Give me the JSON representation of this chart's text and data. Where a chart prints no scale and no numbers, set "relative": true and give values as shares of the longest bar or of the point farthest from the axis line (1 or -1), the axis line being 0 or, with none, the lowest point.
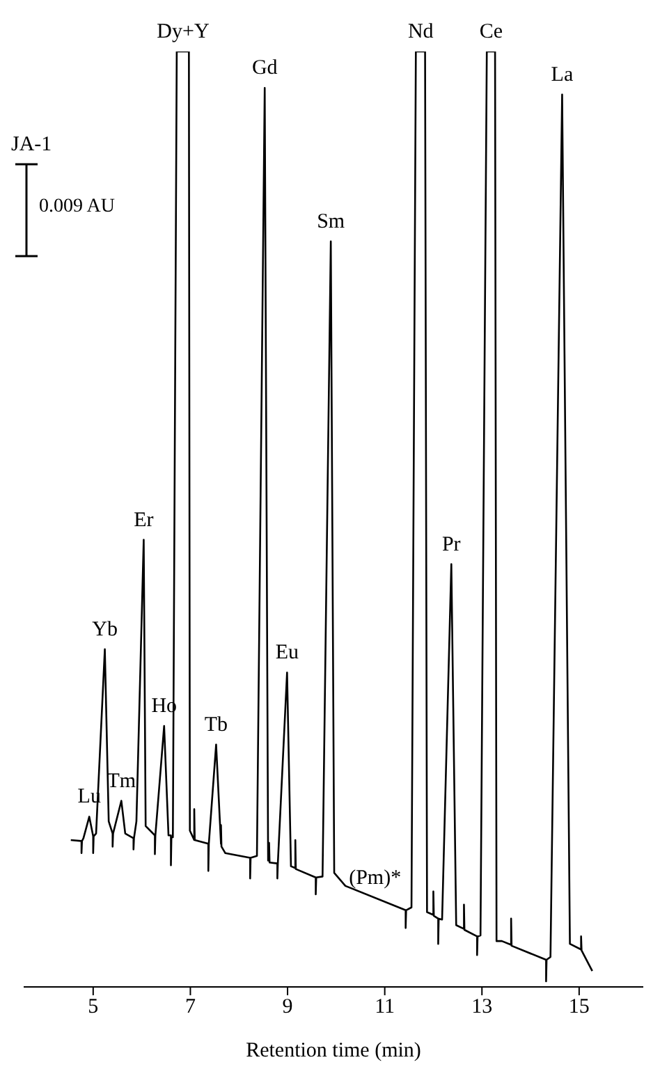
{
  "chart_data": {
    "type": "line",
    "relative": true,
    "xlabel": "Retention time (min)",
    "xlim": [
      3.57,
      16.32
    ],
    "xticks": [
      5,
      7,
      9,
      11,
      13,
      15
    ],
    "marker": "none",
    "line_style": "solid",
    "series": [
      {
        "color": "#000000",
        "x": [
          4.54,
          4.76,
          4.76,
          4.77,
          4.8,
          4.92,
          5.0,
          5.0,
          5.01,
          5.06,
          5.24,
          5.32,
          5.4,
          5.4,
          5.41,
          5.58,
          5.66,
          5.83,
          5.83,
          5.84,
          5.89,
          6.04,
          6.08,
          6.27,
          6.27,
          6.28,
          6.46,
          6.55,
          6.6,
          6.6,
          6.61,
          6.64,
          6.72,
          6.97,
          6.99,
          7.08,
          7.08,
          7.09,
          7.37,
          7.37,
          7.38,
          7.53,
          7.63,
          7.63,
          7.64,
          7.72,
          8.23,
          8.23,
          8.24,
          8.37,
          8.53,
          8.6,
          8.62,
          8.62,
          8.63,
          8.79,
          8.79,
          8.8,
          8.99,
          9.07,
          9.16,
          9.16,
          9.17,
          9.58,
          9.58,
          9.59,
          9.72,
          9.89,
          9.96,
          10.19,
          11.43,
          11.43,
          11.44,
          11.55,
          11.64,
          11.83,
          11.87,
          12.0,
          12.0,
          12.01,
          12.1,
          12.1,
          12.11,
          12.18,
          12.37,
          12.47,
          12.63,
          12.63,
          12.64,
          12.9,
          12.9,
          12.91,
          12.97,
          13.1,
          13.27,
          13.3,
          13.41,
          13.6,
          13.6,
          13.61,
          14.32,
          14.32,
          14.33,
          14.41,
          14.65,
          14.81,
          15.04,
          15.04,
          15.05,
          15.27
        ],
        "values": [
          0.157,
          0.156,
          0.143,
          0.156,
          0.159,
          0.182,
          0.161,
          0.143,
          0.161,
          0.164,
          0.361,
          0.177,
          0.164,
          0.15,
          0.164,
          0.199,
          0.164,
          0.159,
          0.147,
          0.159,
          0.177,
          0.478,
          0.172,
          0.162,
          0.142,
          0.162,
          0.279,
          0.162,
          0.162,
          0.13,
          0.16,
          0.16,
          1.0,
          1.0,
          0.167,
          0.157,
          0.19,
          0.157,
          0.153,
          0.124,
          0.153,
          0.259,
          0.153,
          0.173,
          0.15,
          0.143,
          0.138,
          0.116,
          0.138,
          0.14,
          0.961,
          0.135,
          0.135,
          0.154,
          0.133,
          0.132,
          0.116,
          0.132,
          0.336,
          0.129,
          0.127,
          0.157,
          0.126,
          0.117,
          0.099,
          0.117,
          0.118,
          0.797,
          0.122,
          0.108,
          0.082,
          0.063,
          0.082,
          0.085,
          1.0,
          1.0,
          0.08,
          0.077,
          0.102,
          0.076,
          0.073,
          0.046,
          0.073,
          0.072,
          0.452,
          0.066,
          0.062,
          0.088,
          0.061,
          0.054,
          0.034,
          0.054,
          0.055,
          1.0,
          1.0,
          0.049,
          0.049,
          0.045,
          0.073,
          0.044,
          0.029,
          0.006,
          0.029,
          0.032,
          0.954,
          0.046,
          0.04,
          0.054,
          0.039,
          0.017
        ]
      }
    ],
    "annotations": [
      "JA-1",
      "0.009 AU",
      {
        "text": "Lu",
        "x": 4.92,
        "y": 0.182
      },
      {
        "text": "Yb",
        "x": 5.24,
        "y": 0.361
      },
      {
        "text": "Tm",
        "x": 5.58,
        "y": 0.199
      },
      {
        "text": "Er",
        "x": 6.04,
        "y": 0.478
      },
      {
        "text": "Ho",
        "x": 6.46,
        "y": 0.279
      },
      {
        "text": "Dy+Y",
        "x": 6.85,
        "y": 1.0
      },
      {
        "text": "Tb",
        "x": 7.53,
        "y": 0.259
      },
      {
        "text": "Gd",
        "x": 8.53,
        "y": 0.961
      },
      {
        "text": "Eu",
        "x": 8.99,
        "y": 0.336
      },
      {
        "text": "Sm",
        "x": 9.89,
        "y": 0.797
      },
      {
        "text": "(Pm)*",
        "x": 10.8,
        "y": 0.095
      },
      {
        "text": "Nd",
        "x": 11.74,
        "y": 1.0
      },
      {
        "text": "Pr",
        "x": 12.37,
        "y": 0.452
      },
      {
        "text": "Ce",
        "x": 13.19,
        "y": 1.0
      },
      {
        "text": "La",
        "x": 14.65,
        "y": 0.954
      }
    ]
  }
}
